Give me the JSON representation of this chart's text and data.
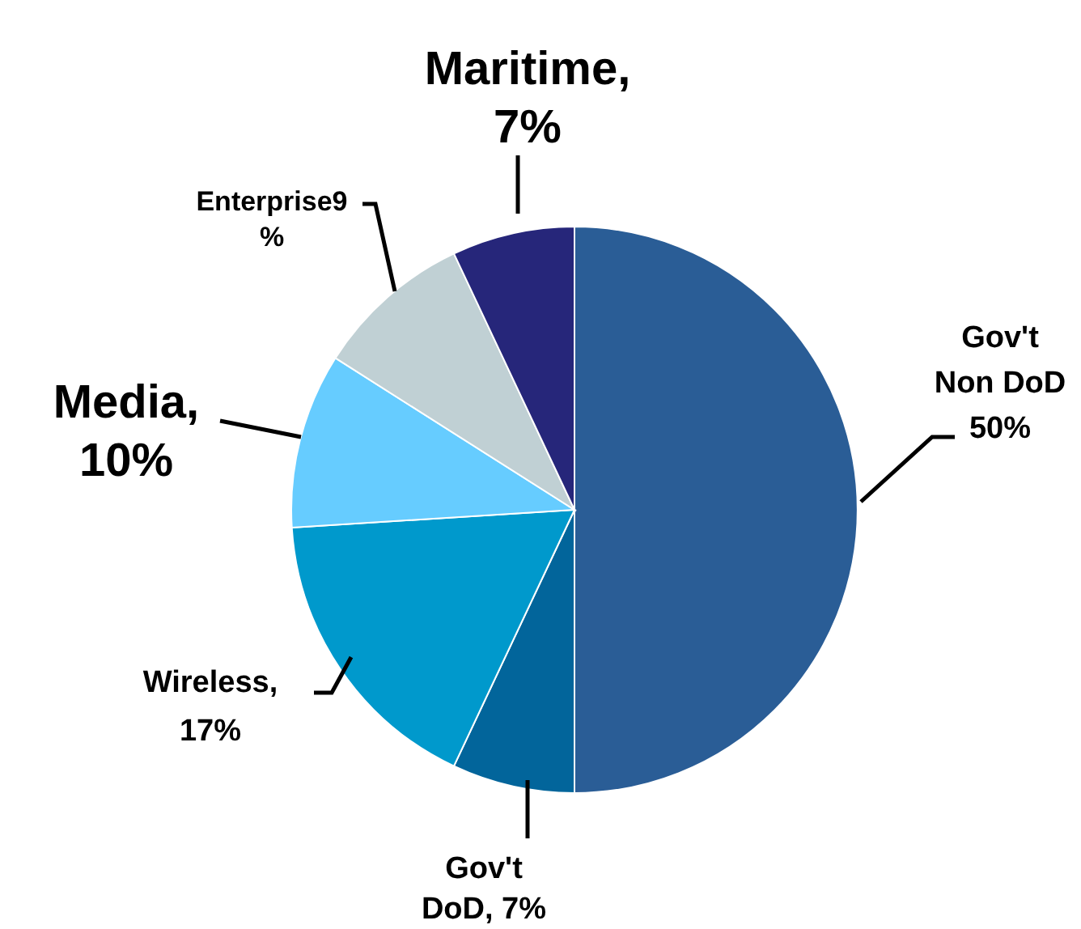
{
  "chart_data": {
    "type": "pie",
    "categories": [
      "Gov't Non DoD 50%",
      "Gov't DoD, 7%",
      "Wireless, 17%",
      "Media, 10%",
      "Enterprise9 %",
      "Maritime, 7%"
    ],
    "values": [
      50,
      7,
      17,
      10,
      9,
      7
    ],
    "colors": [
      "#2a5d96",
      "#02659b",
      "#0099cc",
      "#66ccff",
      "#c0d0d4",
      "#26267a"
    ],
    "legend": false
  }
}
